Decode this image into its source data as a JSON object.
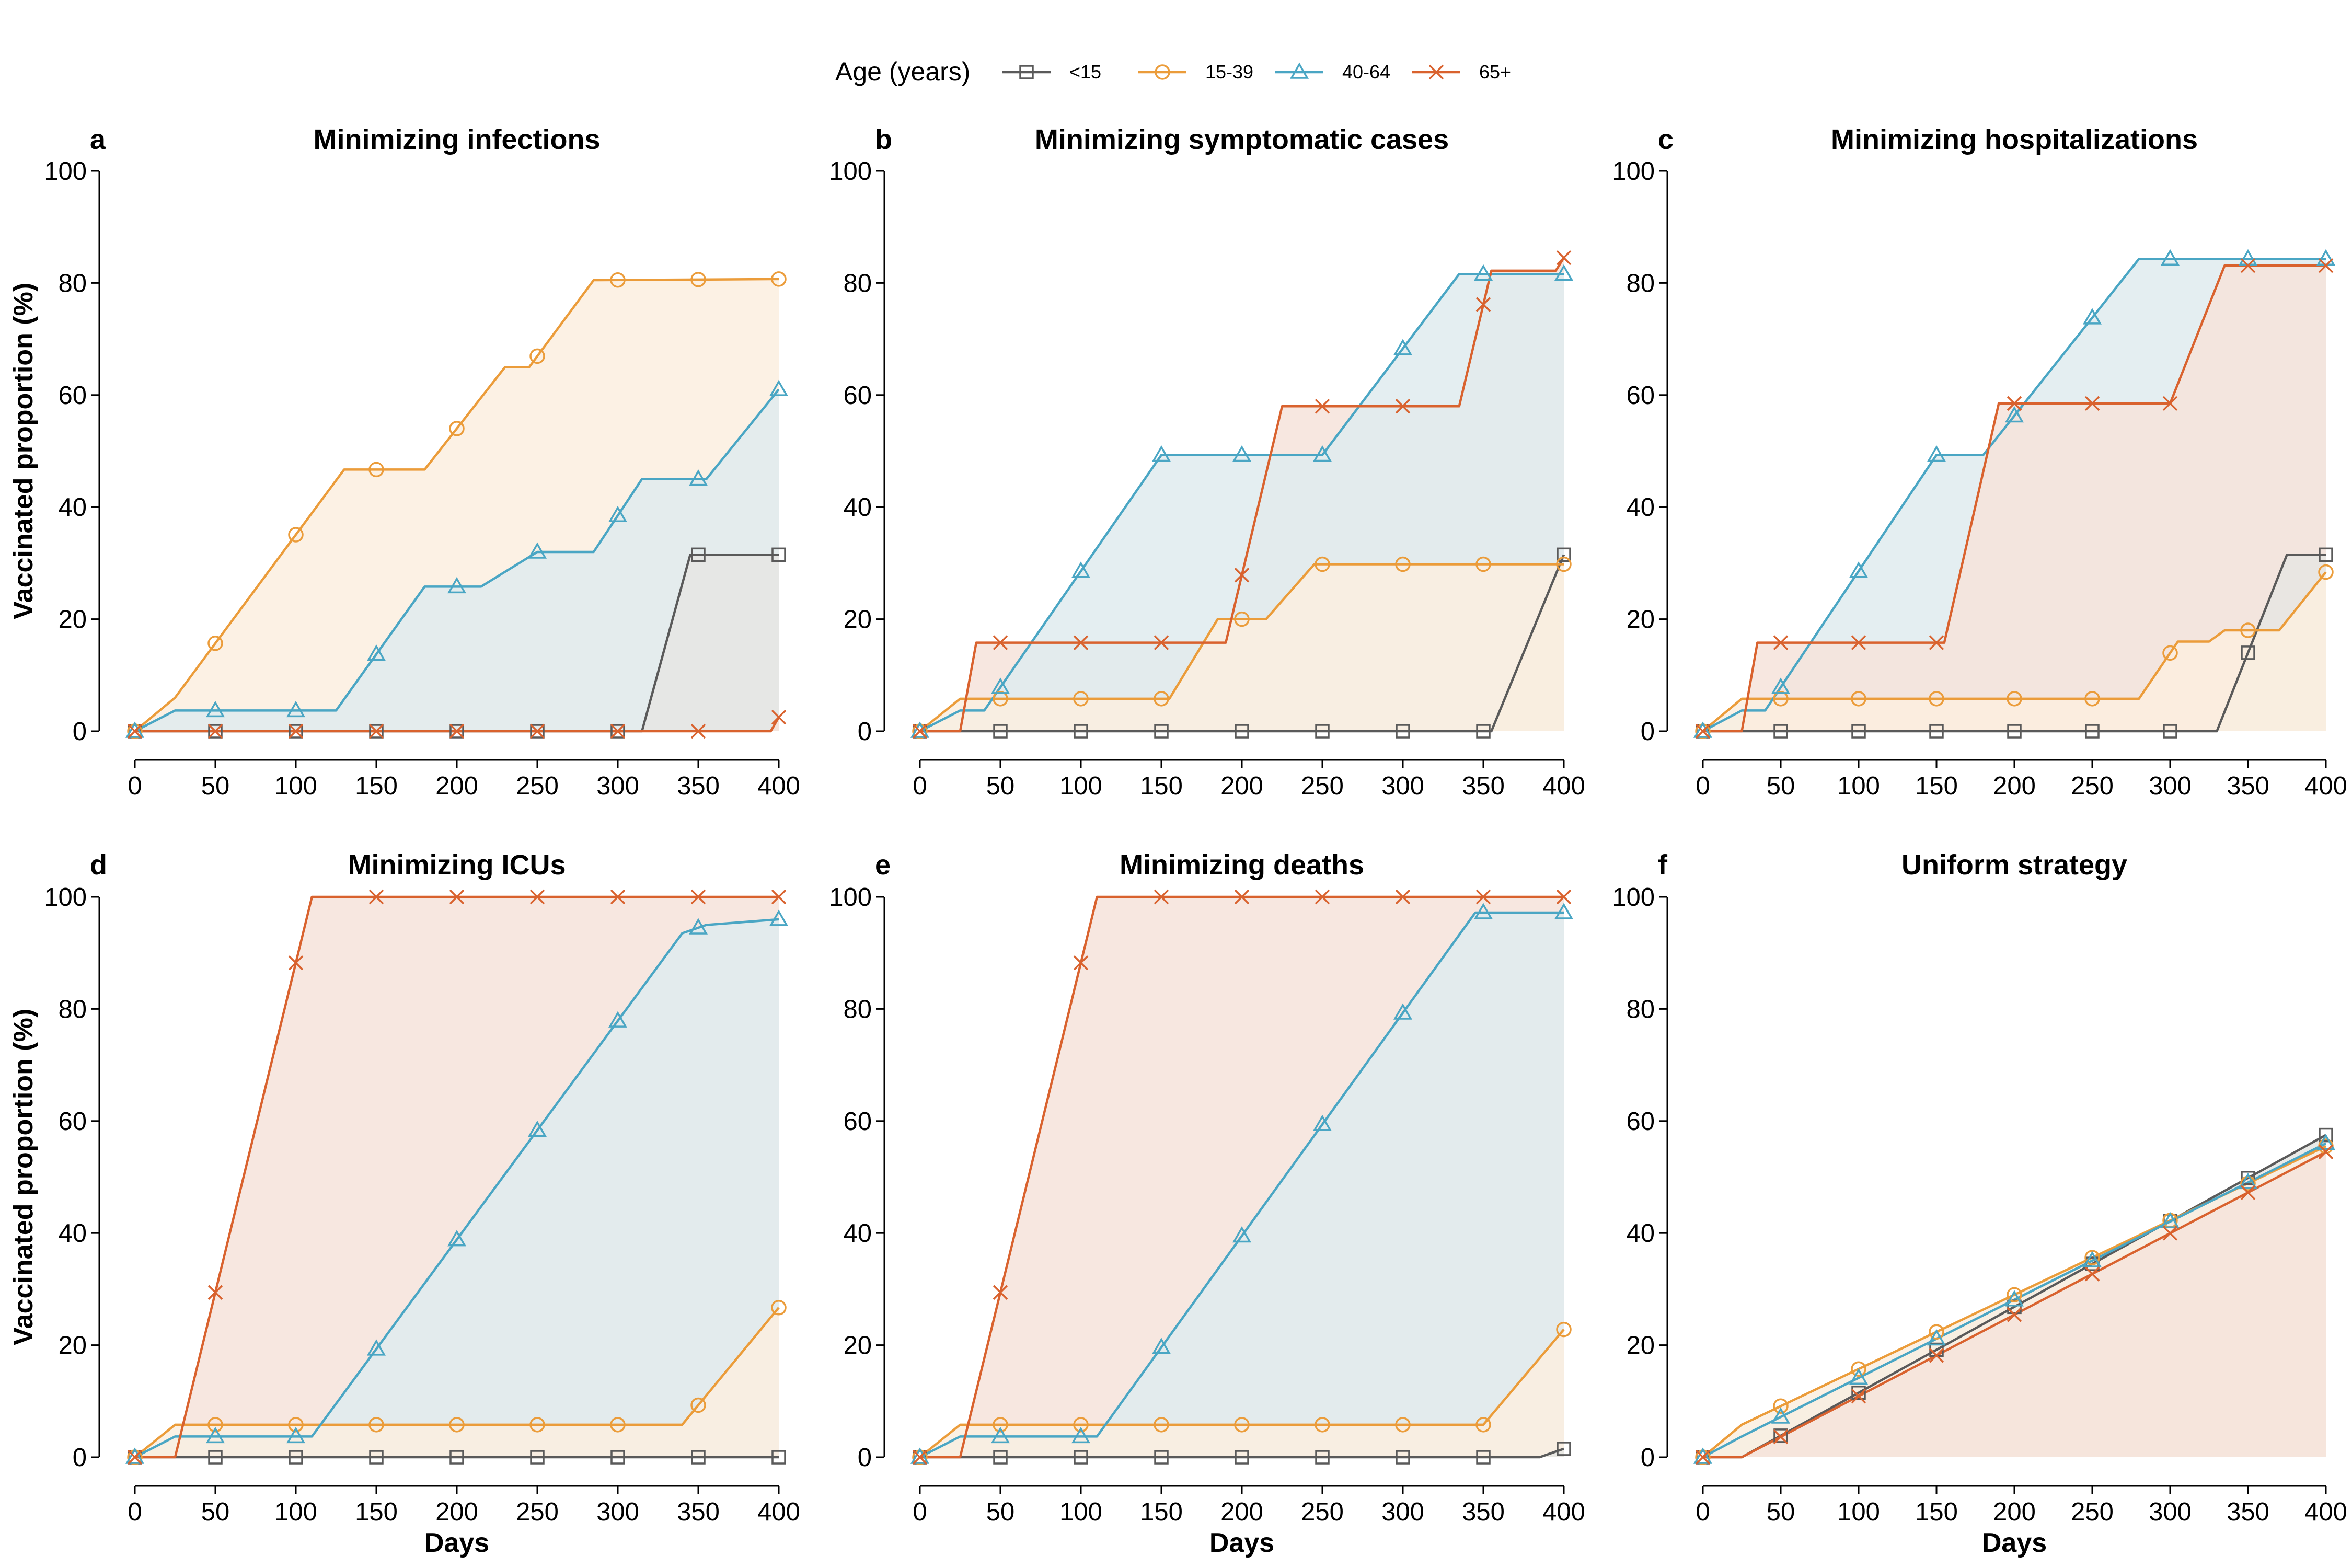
{
  "legend": {
    "title": "Age (years)",
    "items": [
      {
        "label": "<15",
        "color": "#5a5a5a",
        "marker": "square"
      },
      {
        "label": "15-39",
        "color": "#eb9c3a",
        "marker": "circle"
      },
      {
        "label": "40-64",
        "color": "#4aa6c4",
        "marker": "triangle"
      },
      {
        "label": "65+",
        "color": "#d9622e",
        "marker": "cross"
      }
    ]
  },
  "fill_colors": {
    "<15": "#e6e6e3",
    "15-39": "#fbeedf",
    "40-64": "#dfebee",
    "65+": "#f6e3da"
  },
  "chart_data": [
    {
      "type": "area",
      "letter": "a",
      "title": "Minimizing infections",
      "xlabel": "",
      "ylabel": "Vaccinated proportion (%)",
      "xlim": [
        0,
        400
      ],
      "ylim": [
        0,
        100
      ],
      "xticks": [
        0,
        50,
        100,
        150,
        200,
        250,
        300,
        350,
        400
      ],
      "yticks": [
        0,
        20,
        40,
        60,
        80,
        100
      ],
      "marker_x": [
        0,
        50,
        100,
        150,
        200,
        250,
        300,
        350,
        400
      ],
      "series": [
        {
          "name": "<15",
          "points": [
            [
              0,
              0
            ],
            [
              315,
              0
            ],
            [
              345,
              31.5
            ],
            [
              400,
              31.5
            ]
          ]
        },
        {
          "name": "15-39",
          "points": [
            [
              0,
              0
            ],
            [
              25,
              6
            ],
            [
              130,
              46.7
            ],
            [
              180,
              46.7
            ],
            [
              230,
              65
            ],
            [
              245,
              65
            ],
            [
              285,
              80.5
            ],
            [
              400,
              80.7
            ]
          ]
        },
        {
          "name": "40-64",
          "points": [
            [
              0,
              0
            ],
            [
              25,
              3.7
            ],
            [
              125,
              3.7
            ],
            [
              180,
              25.8
            ],
            [
              215,
              25.8
            ],
            [
              250,
              32
            ],
            [
              285,
              32
            ],
            [
              315,
              45
            ],
            [
              355,
              45
            ],
            [
              400,
              61
            ]
          ]
        },
        {
          "name": "65+",
          "points": [
            [
              0,
              0
            ],
            [
              395,
              0
            ],
            [
              400,
              2.5
            ]
          ]
        }
      ]
    },
    {
      "type": "area",
      "letter": "b",
      "title": "Minimizing symptomatic cases",
      "xlabel": "",
      "ylabel": "",
      "xlim": [
        0,
        400
      ],
      "ylim": [
        0,
        100
      ],
      "xticks": [
        0,
        50,
        100,
        150,
        200,
        250,
        300,
        350,
        400
      ],
      "yticks": [
        0,
        20,
        40,
        60,
        80,
        100
      ],
      "marker_x": [
        0,
        50,
        100,
        150,
        200,
        250,
        300,
        350,
        400
      ],
      "series": [
        {
          "name": "<15",
          "points": [
            [
              0,
              0
            ],
            [
              355,
              0
            ],
            [
              400,
              31.5
            ]
          ]
        },
        {
          "name": "15-39",
          "points": [
            [
              0,
              0
            ],
            [
              25,
              5.8
            ],
            [
              155,
              5.8
            ],
            [
              185,
              20
            ],
            [
              215,
              20
            ],
            [
              245,
              29.8
            ],
            [
              400,
              29.8
            ]
          ]
        },
        {
          "name": "40-64",
          "points": [
            [
              0,
              0
            ],
            [
              25,
              3.7
            ],
            [
              40,
              3.7
            ],
            [
              150,
              49.3
            ],
            [
              250,
              49.3
            ],
            [
              335,
              81.6
            ],
            [
              400,
              81.6
            ]
          ]
        },
        {
          "name": "65+",
          "points": [
            [
              0,
              0
            ],
            [
              25,
              0
            ],
            [
              35,
              15.8
            ],
            [
              190,
              15.8
            ],
            [
              225,
              58
            ],
            [
              335,
              58
            ],
            [
              355,
              82.2
            ],
            [
              395,
              82.2
            ],
            [
              400,
              84.5
            ]
          ]
        }
      ]
    },
    {
      "type": "area",
      "letter": "c",
      "title": "Minimizing hospitalizations",
      "xlabel": "",
      "ylabel": "",
      "xlim": [
        0,
        400
      ],
      "ylim": [
        0,
        100
      ],
      "xticks": [
        0,
        50,
        100,
        150,
        200,
        250,
        300,
        350,
        400
      ],
      "yticks": [
        0,
        20,
        40,
        60,
        80,
        100
      ],
      "marker_x": [
        0,
        50,
        100,
        150,
        200,
        250,
        300,
        350,
        400
      ],
      "series": [
        {
          "name": "<15",
          "points": [
            [
              0,
              0
            ],
            [
              330,
              0
            ],
            [
              375,
              31.5
            ],
            [
              400,
              31.5
            ]
          ]
        },
        {
          "name": "15-39",
          "points": [
            [
              0,
              0
            ],
            [
              25,
              5.8
            ],
            [
              280,
              5.8
            ],
            [
              305,
              16
            ],
            [
              325,
              16
            ],
            [
              335,
              18
            ],
            [
              370,
              18
            ],
            [
              400,
              28.4
            ]
          ]
        },
        {
          "name": "40-64",
          "points": [
            [
              0,
              0
            ],
            [
              25,
              3.7
            ],
            [
              40,
              3.7
            ],
            [
              150,
              49.3
            ],
            [
              180,
              49.3
            ],
            [
              280,
              84.3
            ],
            [
              400,
              84.3
            ]
          ]
        },
        {
          "name": "65+",
          "points": [
            [
              0,
              0
            ],
            [
              25,
              0
            ],
            [
              35,
              15.8
            ],
            [
              155,
              15.8
            ],
            [
              190,
              58.5
            ],
            [
              300,
              58.5
            ],
            [
              335,
              83.1
            ],
            [
              400,
              83.1
            ]
          ]
        }
      ]
    },
    {
      "type": "area",
      "letter": "d",
      "title": "Minimizing ICUs",
      "xlabel": "Days",
      "ylabel": "Vaccinated proportion (%)",
      "xlim": [
        0,
        400
      ],
      "ylim": [
        0,
        100
      ],
      "xticks": [
        0,
        50,
        100,
        150,
        200,
        250,
        300,
        350,
        400
      ],
      "yticks": [
        0,
        20,
        40,
        60,
        80,
        100
      ],
      "marker_x": [
        0,
        50,
        100,
        150,
        200,
        250,
        300,
        350,
        400
      ],
      "series": [
        {
          "name": "<15",
          "points": [
            [
              0,
              0
            ],
            [
              400,
              0
            ]
          ]
        },
        {
          "name": "15-39",
          "points": [
            [
              0,
              0
            ],
            [
              25,
              5.8
            ],
            [
              340,
              5.8
            ],
            [
              400,
              26.7
            ]
          ]
        },
        {
          "name": "40-64",
          "points": [
            [
              0,
              0
            ],
            [
              25,
              3.7
            ],
            [
              110,
              3.7
            ],
            [
              340,
              93.5
            ],
            [
              355,
              95
            ],
            [
              400,
              96
            ]
          ]
        },
        {
          "name": "65+",
          "points": [
            [
              0,
              0
            ],
            [
              25,
              0
            ],
            [
              110,
              100
            ],
            [
              400,
              100
            ]
          ]
        }
      ]
    },
    {
      "type": "area",
      "letter": "e",
      "title": "Minimizing deaths",
      "xlabel": "Days",
      "ylabel": "",
      "xlim": [
        0,
        400
      ],
      "ylim": [
        0,
        100
      ],
      "xticks": [
        0,
        50,
        100,
        150,
        200,
        250,
        300,
        350,
        400
      ],
      "yticks": [
        0,
        20,
        40,
        60,
        80,
        100
      ],
      "marker_x": [
        0,
        50,
        100,
        150,
        200,
        250,
        300,
        350,
        400
      ],
      "series": [
        {
          "name": "<15",
          "points": [
            [
              0,
              0
            ],
            [
              385,
              0
            ],
            [
              400,
              1.5
            ]
          ]
        },
        {
          "name": "15-39",
          "points": [
            [
              0,
              0
            ],
            [
              25,
              5.8
            ],
            [
              350,
              5.8
            ],
            [
              400,
              22.8
            ]
          ]
        },
        {
          "name": "40-64",
          "points": [
            [
              0,
              0
            ],
            [
              25,
              3.7
            ],
            [
              110,
              3.7
            ],
            [
              345,
              97.2
            ],
            [
              400,
              97.2
            ]
          ]
        },
        {
          "name": "65+",
          "points": [
            [
              0,
              0
            ],
            [
              25,
              0
            ],
            [
              110,
              100
            ],
            [
              400,
              100
            ]
          ]
        }
      ]
    },
    {
      "type": "area",
      "letter": "f",
      "title": "Uniform strategy",
      "xlabel": "Days",
      "ylabel": "",
      "xlim": [
        0,
        400
      ],
      "ylim": [
        0,
        100
      ],
      "xticks": [
        0,
        50,
        100,
        150,
        200,
        250,
        300,
        350,
        400
      ],
      "yticks": [
        0,
        20,
        40,
        60,
        80,
        100
      ],
      "marker_x": [
        0,
        50,
        100,
        150,
        200,
        250,
        300,
        350,
        400
      ],
      "series": [
        {
          "name": "<15",
          "points": [
            [
              0,
              0
            ],
            [
              25,
              0
            ],
            [
              400,
              57.5
            ]
          ]
        },
        {
          "name": "15-39",
          "points": [
            [
              0,
              0
            ],
            [
              25,
              5.8
            ],
            [
              400,
              55.5
            ]
          ]
        },
        {
          "name": "40-64",
          "points": [
            [
              0,
              0
            ],
            [
              25,
              3.7
            ],
            [
              400,
              56
            ]
          ]
        },
        {
          "name": "65+",
          "points": [
            [
              0,
              0
            ],
            [
              25,
              0
            ],
            [
              400,
              54.5
            ]
          ]
        }
      ]
    }
  ]
}
